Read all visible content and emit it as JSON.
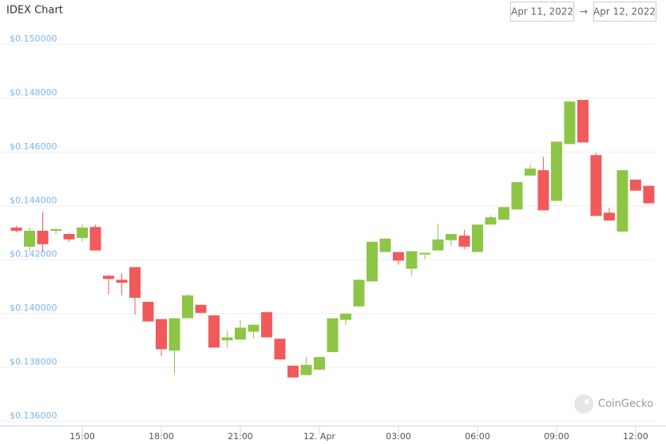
{
  "chart_data": {
    "type": "candlestick",
    "title": "IDEX Chart",
    "x": [
      12.5,
      13,
      13.5,
      14,
      14.5,
      15,
      15.5,
      16,
      16.5,
      17,
      17.5,
      18,
      18.5,
      19,
      19.5,
      20,
      20.5,
      21,
      21.5,
      22,
      22.5,
      23,
      23.5,
      24,
      24.5,
      25,
      25.5,
      26,
      26.5,
      27,
      27.5,
      28,
      28.5,
      29,
      29.5,
      30,
      30.5,
      31,
      31.5,
      32,
      32.5,
      33,
      33.5,
      34,
      34.5,
      35,
      35.5,
      36,
      36.5
    ],
    "open": [
      0.14318,
      0.14247,
      0.14306,
      0.14306,
      0.14294,
      0.14279,
      0.1432,
      0.14139,
      0.14124,
      0.14171,
      0.14042,
      0.13978,
      0.13861,
      0.13981,
      0.14031,
      0.13992,
      0.13899,
      0.13902,
      0.13931,
      0.14004,
      0.13905,
      0.13805,
      0.1377,
      0.1379,
      0.13855,
      0.13975,
      0.14025,
      0.14118,
      0.14227,
      0.14227,
      0.14165,
      0.14218,
      0.14233,
      0.14271,
      0.14288,
      0.14227,
      0.14329,
      0.14347,
      0.14385,
      0.14511,
      0.14531,
      0.14417,
      0.14628,
      0.14792,
      0.14587,
      0.14373,
      0.14303,
      0.14496,
      0.14473
    ],
    "high": [
      0.14323,
      0.14318,
      0.14376,
      0.14315,
      0.14297,
      0.14329,
      0.14329,
      0.14142,
      0.14148,
      0.14171,
      0.14042,
      0.13978,
      0.13981,
      0.14072,
      0.14031,
      0.13992,
      0.13934,
      0.13975,
      0.13957,
      0.14004,
      0.13905,
      0.13805,
      0.13837,
      0.13837,
      0.13981,
      0.13998,
      0.14124,
      0.14265,
      0.14277,
      0.14227,
      0.1423,
      0.14224,
      0.14332,
      0.14294,
      0.14309,
      0.14329,
      0.14364,
      0.14394,
      0.14487,
      0.14552,
      0.14581,
      0.14637,
      0.14786,
      0.14792,
      0.14596,
      0.14391,
      0.14531,
      0.14496,
      0.14473
    ],
    "low": [
      0.143,
      0.1423,
      0.14227,
      0.14294,
      0.14265,
      0.14265,
      0.14233,
      0.14069,
      0.14066,
      0.13995,
      0.13969,
      0.1384,
      0.13773,
      0.13981,
      0.14001,
      0.13872,
      0.13872,
      0.13902,
      0.13907,
      0.1391,
      0.13828,
      0.13761,
      0.1377,
      0.1379,
      0.13855,
      0.13957,
      0.14025,
      0.14118,
      0.14227,
      0.1418,
      0.14139,
      0.142,
      0.14233,
      0.1425,
      0.14238,
      0.14227,
      0.14329,
      0.14347,
      0.14385,
      0.14511,
      0.14382,
      0.14417,
      0.14628,
      0.14634,
      0.14361,
      0.14344,
      0.14303,
      0.14455,
      0.14408
    ],
    "close": [
      0.14306,
      0.14306,
      0.14256,
      0.14312,
      0.14274,
      0.14318,
      0.14233,
      0.14127,
      0.14113,
      0.14057,
      0.13969,
      0.13866,
      0.13981,
      0.14066,
      0.14001,
      0.13872,
      0.1391,
      0.13946,
      0.13957,
      0.1391,
      0.13828,
      0.13761,
      0.13808,
      0.13837,
      0.13981,
      0.13998,
      0.14124,
      0.14265,
      0.14277,
      0.14195,
      0.1423,
      0.14224,
      0.14274,
      0.14294,
      0.14247,
      0.14329,
      0.14356,
      0.14394,
      0.14487,
      0.14537,
      0.14382,
      0.14637,
      0.14786,
      0.14634,
      0.14361,
      0.14344,
      0.14531,
      0.14455,
      0.14408
    ],
    "up_color": "#8dc647",
    "down_color": "#f05a5a",
    "xlim": [
      12.03,
      36.7
    ],
    "xticks": [
      {
        "value": 15,
        "label": "15:00"
      },
      {
        "value": 18,
        "label": "18:00"
      },
      {
        "value": 21,
        "label": "21:00"
      },
      {
        "value": 24,
        "label": "12. Apr"
      },
      {
        "value": 27,
        "label": "03:00"
      },
      {
        "value": 30,
        "label": "06:00"
      },
      {
        "value": 33,
        "label": "09:00"
      },
      {
        "value": 36,
        "label": "12:00"
      }
    ],
    "ylim": [
      0.136,
      0.15
    ],
    "yticks": [
      {
        "value": 0.136,
        "label": "$0.136000"
      },
      {
        "value": 0.138,
        "label": "$0.138000"
      },
      {
        "value": 0.14,
        "label": "$0.140000"
      },
      {
        "value": 0.142,
        "label": "$0.142000"
      },
      {
        "value": 0.144,
        "label": "$0.144000"
      },
      {
        "value": 0.146,
        "label": "$0.146000"
      },
      {
        "value": 0.148,
        "label": "$0.148000"
      },
      {
        "value": 0.15,
        "label": "$0.150000"
      }
    ],
    "grid": true
  },
  "date_range": {
    "from": "Apr 11, 2022",
    "separator": "→",
    "to": "Apr 12, 2022"
  },
  "watermark": "CoinGecko"
}
